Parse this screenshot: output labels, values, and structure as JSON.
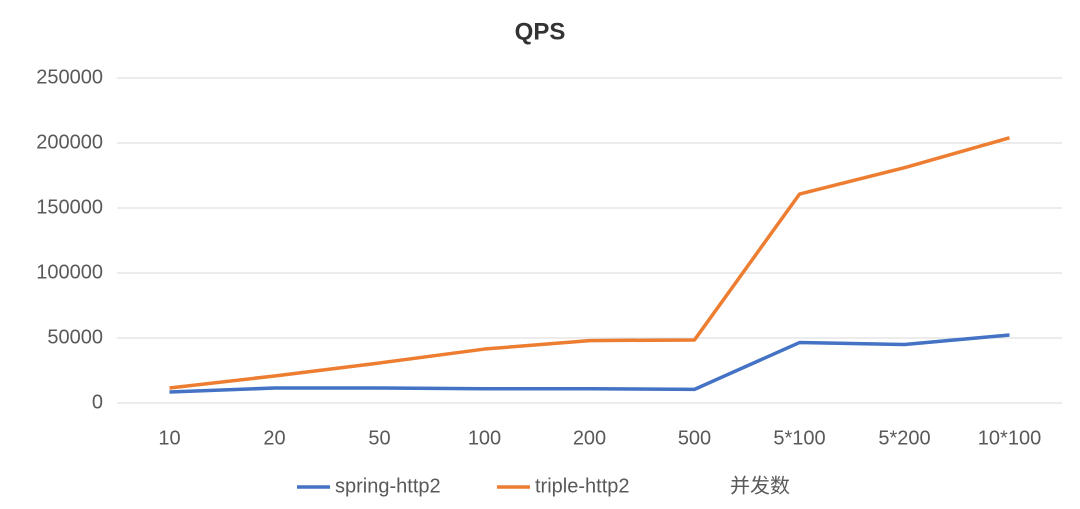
{
  "chart_data": {
    "type": "line",
    "title": "QPS",
    "x_label": "并发数",
    "categories": [
      "10",
      "20",
      "50",
      "100",
      "200",
      "500",
      "5*100",
      "5*200",
      "10*100"
    ],
    "series": [
      {
        "name": "spring-http2",
        "color": "#4472c4",
        "values": [
          8500,
          11500,
          11500,
          11000,
          11000,
          10500,
          46500,
          45000,
          52300
        ]
      },
      {
        "name": "triple-http2",
        "color": "#ed7d31",
        "values": [
          11500,
          20800,
          30800,
          41500,
          48000,
          48500,
          160700,
          181000,
          204000
        ]
      }
    ],
    "ylim": [
      0,
      250000
    ],
    "yticks": [
      0,
      50000,
      100000,
      150000,
      200000,
      250000
    ],
    "grid": true,
    "legend": "bottom"
  }
}
